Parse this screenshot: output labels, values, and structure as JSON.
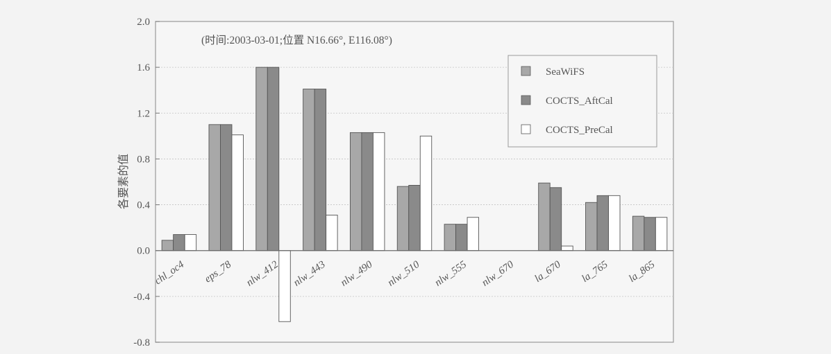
{
  "chart_data": {
    "type": "bar",
    "annotation": "(时间:2003-03-01;位置 N16.66°, E116.08°)",
    "ylabel": "各要素的值",
    "xlabel": "",
    "ylim": [
      -0.8,
      2.0
    ],
    "yticks": [
      "2.0",
      "1.6",
      "1.2",
      "0.8",
      "0.4",
      "0.0",
      "-0.4",
      "-0.8"
    ],
    "ytick_values": [
      2.0,
      1.6,
      1.2,
      0.8,
      0.4,
      0.0,
      -0.4,
      -0.8
    ],
    "grid": "horizontal dotted",
    "legend_position": "top-right",
    "categories": [
      "chl_oc4",
      "eps_78",
      "nlw_412",
      "nlw_443",
      "nlw_490",
      "nlw_510",
      "nlw_555",
      "nlw_670",
      "la_670",
      "la_765",
      "la_865"
    ],
    "series": [
      {
        "name": "SeaWiFS",
        "color": "#a8a8a8",
        "values": [
          0.09,
          1.1,
          1.6,
          1.41,
          1.03,
          0.56,
          0.23,
          null,
          0.59,
          0.42,
          0.3
        ]
      },
      {
        "name": "COCTS_AftCal",
        "color": "#8a8a8a",
        "values": [
          0.14,
          1.1,
          1.6,
          1.41,
          1.03,
          0.57,
          0.23,
          null,
          0.55,
          0.48,
          0.29
        ]
      },
      {
        "name": "COCTS_PreCal",
        "color": "#ffffff",
        "values": [
          0.14,
          1.01,
          -0.62,
          0.31,
          1.03,
          1.0,
          0.29,
          null,
          0.04,
          0.48,
          0.29
        ]
      }
    ]
  }
}
